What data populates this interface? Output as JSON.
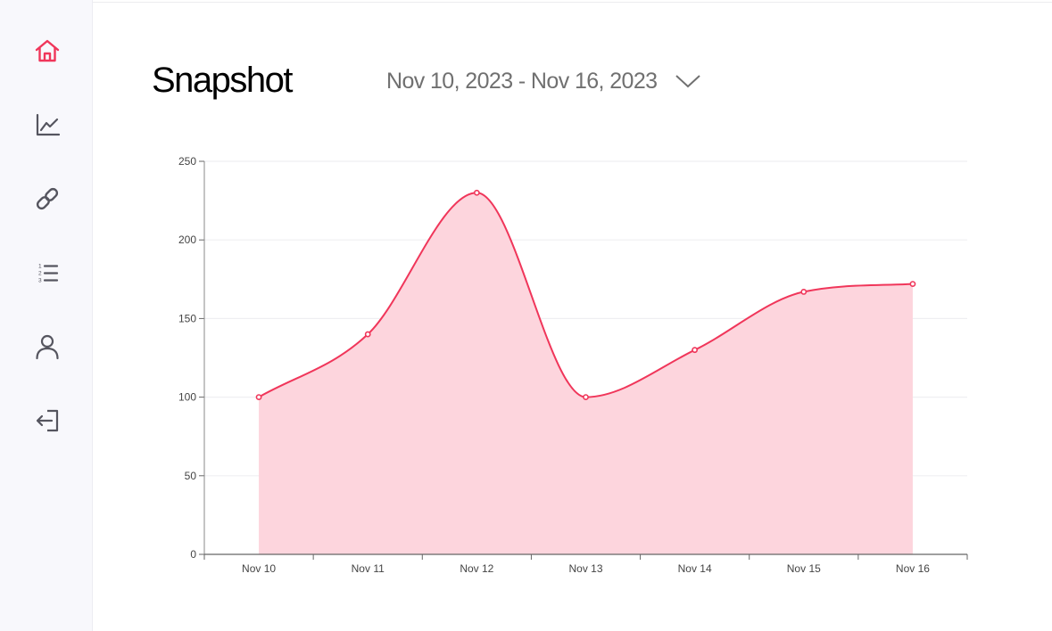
{
  "sidebar": {
    "items": [
      {
        "icon": "home-icon",
        "active": true
      },
      {
        "icon": "analytics-icon",
        "active": false
      },
      {
        "icon": "link-icon",
        "active": false
      },
      {
        "icon": "numbered-list-icon",
        "active": false
      },
      {
        "icon": "user-icon",
        "active": false
      },
      {
        "icon": "logout-icon",
        "active": false
      }
    ],
    "active_color": "#f0365a",
    "icon_color": "#55555f"
  },
  "header": {
    "title": "Snapshot",
    "date_range": "Nov 10, 2023 - Nov 16, 2023"
  },
  "chart_data": {
    "type": "area",
    "categories": [
      "Nov 10",
      "Nov 11",
      "Nov 12",
      "Nov 13",
      "Nov 14",
      "Nov 15",
      "Nov 16"
    ],
    "values": [
      100,
      140,
      230,
      100,
      130,
      167,
      172
    ],
    "title": "",
    "xlabel": "",
    "ylabel": "",
    "ylim": [
      0,
      250
    ],
    "yticks": [
      "0",
      "50",
      "100",
      "150",
      "200",
      "250"
    ],
    "grid": true,
    "line_color": "#f0365a",
    "fill_color": "#fdd5dd"
  }
}
